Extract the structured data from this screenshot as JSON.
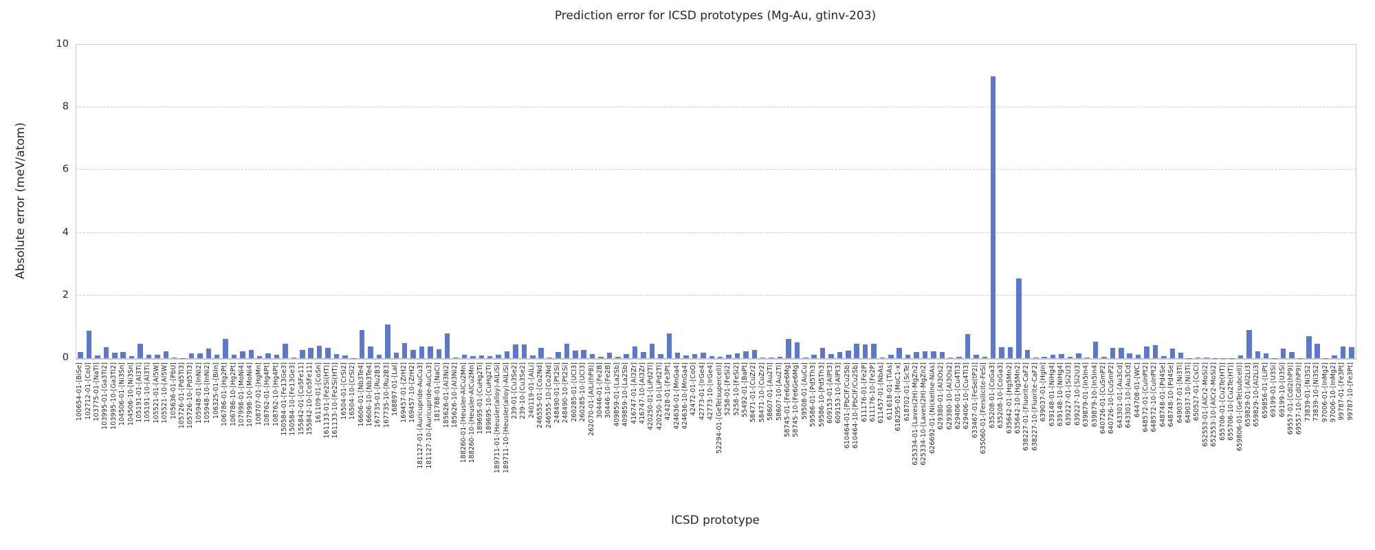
{
  "title": "Prediction error for ICSD prototypes (Mg-Au, gtinv-203)",
  "chart_data": {
    "type": "bar",
    "title": "Prediction error for ICSD prototypes (Mg-Au, gtinv-203)",
    "xlabel": "ICSD prototype",
    "ylabel": "Absolute error (meV/atom)",
    "ylim": [
      0,
      10
    ],
    "yticks": [
      0,
      2,
      4,
      6,
      8,
      10
    ],
    "grid": "horizontal dashed",
    "legend": "none",
    "bar_color": "#5a78ce",
    "grid_color": "#cccccc",
    "text_color": "#262626",
    "categories": [
      "100654-01-[BiSe]",
      "102712-01-[CoU]",
      "103775-01-[NaTl]",
      "103995-01-[Ga3Ti2]",
      "103995-10-[Ga3Ti2]",
      "104506-01-[Ni3Sn]",
      "104506-10-[Ni3Sn]",
      "105191-01-[Al3Ti]",
      "105191-10-[Al3Ti]",
      "105521-01-[Al5W]",
      "105521-10-[Al5W]",
      "105636-01-[PbU]",
      "105726-01-[Pd5Ti3]",
      "105726-10-[Pd5Ti3]",
      "105948-01-[InNi2]",
      "105948-10-[InNi2]",
      "106325-01-[BiIn]",
      "106786-01-[Hg2Pt]",
      "106786-10-[Hg2Pt]",
      "107998-01-[MoNi4]",
      "107998-10-[MoNi4]",
      "108707-01-[HgMn]",
      "108762-01-[Hg4Pt]",
      "108762-10-[Hg4Pt]",
      "150584-01-[Fe13Ge3]",
      "150584-10-[Fe13Ge3]",
      "155842-01-[Co5Fe11]",
      "155842-10-[Co5Fe11]",
      "161109-01-[CoSn]",
      "161133-01-[Fe2Si(HT)]",
      "161133-10-[Fe2Si(HT)]",
      "16504-01-[CrSi2]",
      "16504-10-[CrSi2]",
      "16606-01-[Nb3Te4]",
      "16606-10-[Nb3Te4]",
      "167735-01-[Ru2B3]",
      "167735-10-[Ru2B3]",
      "168897-01-[LaI]",
      "169457-01-[ZrH2]",
      "169457-10-[ZrH2]",
      "181127-01-[Auricupride-AuCu3]",
      "181127-10-[Auricupride-AuCu3]",
      "181788-01-[NaCl]",
      "185626-01-[Al3Ni2]",
      "185626-10-[Al3Ni2]",
      "188260-01-[Heusler-AlCu2Mn]",
      "188260-10-[Heusler-AlCu2Mn]",
      "189695-01-[CuHg2Ti]",
      "189695-10-[CuHg2Ti]",
      "189711-01-[Heusler(alloy)-AlLiSi]",
      "189711-10-[Heusler(alloy)-AlLiSi]",
      "239-01-[Cu3Se2]",
      "239-10-[Cu3Se2]",
      "240119-01-[AlLi]",
      "246555-01-[Co2Nd]",
      "246555-10-[Co2Nd]",
      "248490-01-[Pt2Si]",
      "248490-10-[Pt2Si]",
      "260285-01-[UCl3]",
      "260285-10-[UCl3]",
      "262070-01-[AlLi(hP8)]",
      "30446-01-[Fe2B]",
      "30446-10-[Fe2B]",
      "409859-01-[La2Sb]",
      "409859-10-[La2Sb]",
      "416747-01-[Al3Zr]",
      "416747-10-[Al3Zr]",
      "420250-01-[LiPd2Tl]",
      "420250-10-[LiPd2Tl]",
      "42428-01-[Fe3Pt]",
      "424636-01-[MnGa4]",
      "424636-10-[MnGa4]",
      "42472-01-[CoO]",
      "42773-01-[IrGe4]",
      "42773-10-[IrGe4]",
      "52294-01-[GeTe(supercell)]",
      "5258-01-[FeSi2]",
      "5258-10-[FeSi2]",
      "55492-01-[BaPt]",
      "58471-01-[CuZr2]",
      "58471-10-[CuZr2]",
      "58607-01-[Au2Ti]",
      "58607-10-[Au2Ti]",
      "58745-01-[Fe6Ge6Mg]",
      "58745-10-[Fe6Ge6Mg]",
      "59508-01-[AuCu]",
      "59586-01-[Pd5Th3]",
      "59586-10-[Pd5Th3]",
      "609153-01-[AlPt3]",
      "609153-10-[AlPt3]",
      "610464-01-[PbClF/Cu2Sb]",
      "610464-10-[PbClF/Cu2Sb]",
      "611176-01-[Fe2P]",
      "611176-10-[Fe2P]",
      "611457-01-[NbAs]",
      "611618-01-[TiAs]",
      "618295-01-[MoC1-x]",
      "618702-01-[ScTe]",
      "625334-01-[Laves(2H)-MgZn2]",
      "625334-10-[Laves(2H)-MgZn2]",
      "626692-01-[Nickeline-NiAs]",
      "629380-01-[Al3Os2]",
      "629380-10-[Al3Os2]",
      "629406-01-[Cu4Ti3]",
      "629406-10-[Cu4Ti3]",
      "633467-01-[FeSe(tP2)]",
      "635060-01-[Fersilicite-FeSi]",
      "635208-01-[CoGa3]",
      "635208-10-[CoGa3]",
      "635642-01-[Hg5Mn2]",
      "635642-10-[Hg5Mn2]",
      "638227-01-[Fluorite-CaF2]",
      "638227-10-[Fluorite-CaF2]",
      "639037-01-[HgIn]",
      "639148-01-[NiHg4]",
      "639148-10-[NiHg4]",
      "639227-01-[Si2U3]",
      "639227-10-[Si2U3]",
      "639879-01-[In5In4]",
      "639879-10-[In5In4]",
      "640726-01-[CuSmP2]",
      "640726-10-[CuSmP2]",
      "643301-01-[Au3Cd]",
      "643301-10-[Au3Cd]",
      "644708-01-[WC]",
      "648572-01-[CuInPt2]",
      "648572-10-[CuInPt2]",
      "648748-01-[Pd4Se]",
      "648748-10-[Pd4Se]",
      "649037-01-[Ni3Ti]",
      "649037-10-[Ni3Ti]",
      "650527-01-[CsCl]",
      "652553-01-[AlCr2-MoSi2]",
      "652553-10-[AlCr2-MoSi2]",
      "655706-01-[Cu2Te(HT)]",
      "655706-10-[Cu2Te(HT)]",
      "659806-01-[GeTe(subcell)]",
      "659829-01-[Al2Li3]",
      "659829-10-[Al2Li3]",
      "659856-01-[LiPt]",
      "69199-01-[U3Si]",
      "69199-10-[U3Si]",
      "69557-01-[CdI2(hP9)]",
      "69557-10-[CdI2(hP9)]",
      "73839-01-[Ni3S2]",
      "73839-10-[Ni3S2]",
      "97006-01-[InMg2]",
      "97006-10-[InMg2]",
      "99787-01-[Fe3Pt]",
      "99787-10-[Fe3Pt]"
    ],
    "values": [
      0.19,
      0.88,
      0.09,
      0.35,
      0.18,
      0.19,
      0.07,
      0.46,
      0.12,
      0.1,
      0.22,
      0.03,
      0.01,
      0.15,
      0.16,
      0.31,
      0.11,
      0.61,
      0.1,
      0.21,
      0.26,
      0.06,
      0.16,
      0.1,
      0.45,
      0.03,
      0.26,
      0.32,
      0.4,
      0.33,
      0.14,
      0.08,
      0.01,
      0.89,
      0.38,
      0.12,
      1.08,
      0.17,
      0.48,
      0.26,
      0.38,
      0.38,
      0.28,
      0.8,
      0.02,
      0.11,
      0.06,
      0.08,
      0.06,
      0.12,
      0.21,
      0.43,
      0.44,
      0.08,
      0.34,
      0.02,
      0.19,
      0.45,
      0.24,
      0.27,
      0.14,
      0.05,
      0.17,
      0.05,
      0.14,
      0.38,
      0.19,
      0.47,
      0.14,
      0.8,
      0.17,
      0.09,
      0.14,
      0.18,
      0.07,
      0.05,
      0.12,
      0.16,
      0.21,
      0.26,
      0.03,
      0.02,
      0.05,
      0.62,
      0.5,
      0.03,
      0.1,
      0.33,
      0.13,
      0.19,
      0.25,
      0.45,
      0.43,
      0.45,
      0.02,
      0.11,
      0.34,
      0.1,
      0.19,
      0.21,
      0.23,
      0.19,
      0.02,
      0.05,
      0.76,
      0.12,
      0.05,
      9.0,
      0.35,
      0.35,
      2.55,
      0.26,
      0.03,
      0.05,
      0.1,
      0.13,
      0.04,
      0.16,
      0.02,
      0.52,
      0.05,
      0.33,
      0.33,
      0.15,
      0.12,
      0.38,
      0.42,
      0.07,
      0.31,
      0.17,
      0.01,
      0.02,
      0.03,
      0.01,
      0.01,
      0.01,
      0.08,
      0.91,
      0.22,
      0.15,
      0.01,
      0.31,
      0.19,
      0.01,
      0.7,
      0.47,
      0.01,
      0.08,
      0.38,
      0.36
    ]
  }
}
